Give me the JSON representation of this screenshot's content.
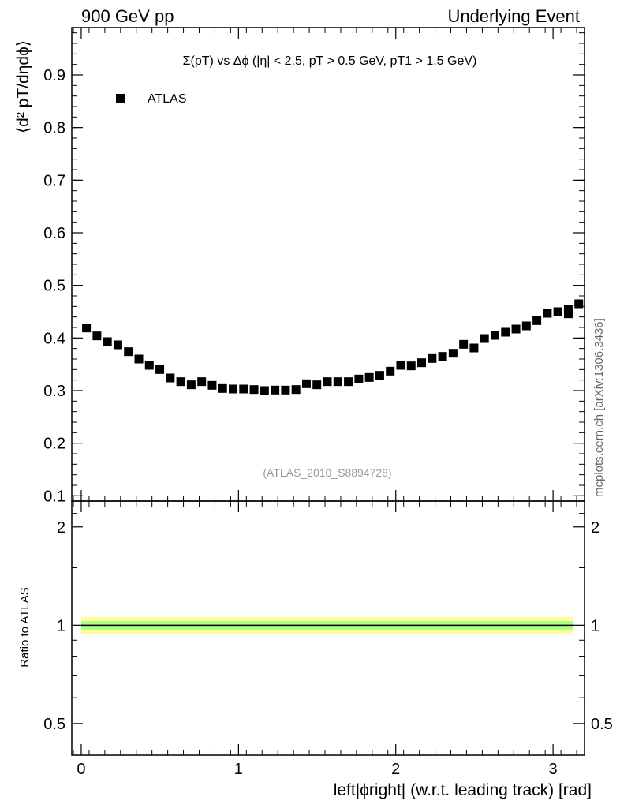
{
  "header": {
    "left": "900 GeV pp",
    "right": "Underlying Event"
  },
  "side_label": "mcplots.cern.ch [arXiv:1306.3436]",
  "watermark": "(ATLAS_2010_S8894728)",
  "chart_data": {
    "type": "scatter",
    "title": "Σ(pT) vs Δϕ (|η| < 2.5, pT > 0.5 GeV, pT1 > 1.5 GeV)",
    "ylabel": "⟨d² pT/dηdϕ⟩",
    "xlabel": "left|ϕright| (w.r.t. leading track) [rad]",
    "xlim": [
      -0.06,
      3.2
    ],
    "ylim": [
      0.09,
      0.99
    ],
    "xticks": [
      0,
      1,
      2,
      3
    ],
    "xtick_labels": [
      "0",
      "1",
      "2",
      "3"
    ],
    "yticks": [
      0.1,
      0.2,
      0.3,
      0.4,
      0.5,
      0.6,
      0.7,
      0.8,
      0.9
    ],
    "ytick_labels": [
      "0.1",
      "0.2",
      "0.3",
      "0.4",
      "0.5",
      "0.6",
      "0.7",
      "0.8",
      "0.9"
    ],
    "legend": {
      "position": "top-left",
      "entries": [
        "ATLAS"
      ]
    },
    "series": [
      {
        "name": "ATLAS",
        "marker": "square",
        "color": "#000000",
        "x": [
          0.0333,
          0.0999,
          0.1665,
          0.2331,
          0.2997,
          0.3663,
          0.4329,
          0.4995,
          0.5661,
          0.6327,
          0.6993,
          0.7659,
          0.8325,
          0.8991,
          0.9657,
          1.0323,
          1.0989,
          1.1655,
          1.2321,
          1.2987,
          1.3653,
          1.4319,
          1.4985,
          1.5651,
          1.6317,
          1.6983,
          1.7649,
          1.8315,
          1.8981,
          1.9647,
          2.0313,
          2.0979,
          2.1645,
          2.2311,
          2.2977,
          2.3643,
          2.4309,
          2.4975,
          2.5641,
          2.6307,
          2.6973,
          2.7639,
          2.8305,
          2.8971,
          2.9637,
          3.0303,
          3.0969
        ],
        "y": [
          0.419,
          0.404,
          0.393,
          0.387,
          0.374,
          0.36,
          0.348,
          0.34,
          0.324,
          0.317,
          0.311,
          0.317,
          0.31,
          0.304,
          0.303,
          0.303,
          0.302,
          0.3,
          0.301,
          0.301,
          0.302,
          0.313,
          0.311,
          0.317,
          0.317,
          0.317,
          0.322,
          0.325,
          0.329,
          0.337,
          0.348,
          0.347,
          0.353,
          0.361,
          0.365,
          0.371,
          0.388,
          0.381,
          0.399,
          0.405,
          0.411,
          0.417,
          0.423,
          0.433,
          0.447,
          0.45,
          0.446
        ]
      },
      {
        "name": "",
        "marker": "square",
        "color": "#000000",
        "x": [
          3.1635
        ],
        "y": [
          0.451
        ]
      }
    ],
    "extra_points": {
      "x": [
        3.0969,
        3.1635
      ],
      "y": [
        0.454,
        0.465
      ]
    },
    "ratio": {
      "ylabel": "Ratio to ATLAS",
      "ylim": [
        0.4,
        2.4
      ],
      "scale": "log",
      "yticks": [
        0.5,
        1,
        2
      ],
      "ytick_labels": [
        "0.5",
        "1",
        "2"
      ],
      "reference": 1,
      "bands": [
        {
          "color": "#ffff99",
          "half_width": 0.06
        },
        {
          "color": "#aaff88",
          "half_width": 0.03
        }
      ]
    }
  }
}
